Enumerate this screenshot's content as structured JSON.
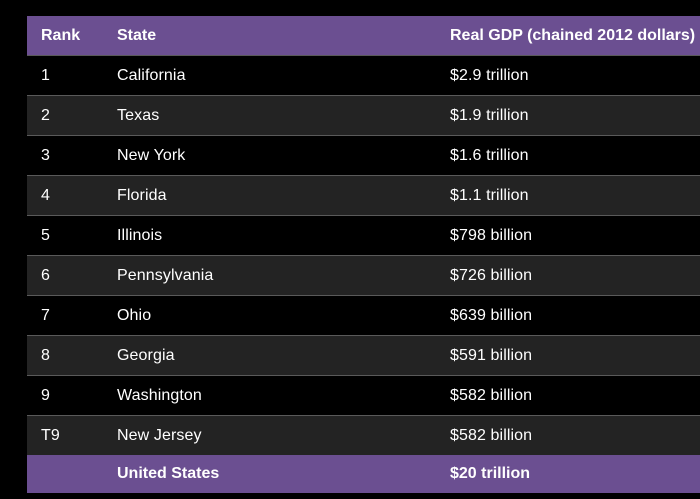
{
  "table": {
    "headers": {
      "rank": "Rank",
      "state": "State",
      "gdp": "Real GDP (chained 2012 dollars)"
    },
    "rows": [
      {
        "rank": "1",
        "state": "California",
        "gdp": "$2.9 trillion"
      },
      {
        "rank": "2",
        "state": "Texas",
        "gdp": "$1.9 trillion"
      },
      {
        "rank": "3",
        "state": "New York",
        "gdp": "$1.6 trillion"
      },
      {
        "rank": "4",
        "state": "Florida",
        "gdp": "$1.1 trillion"
      },
      {
        "rank": "5",
        "state": "Illinois",
        "gdp": "$798 billion"
      },
      {
        "rank": "6",
        "state": "Pennsylvania",
        "gdp": "$726 billion"
      },
      {
        "rank": "7",
        "state": "Ohio",
        "gdp": "$639 billion"
      },
      {
        "rank": "8",
        "state": "Georgia",
        "gdp": "$591 billion"
      },
      {
        "rank": "9",
        "state": "Washington",
        "gdp": "$582 billion"
      },
      {
        "rank": "T9",
        "state": "New Jersey",
        "gdp": "$582 billion"
      }
    ],
    "footer": {
      "rank": "",
      "state": "United States",
      "gdp": "$20 trillion"
    }
  },
  "colors": {
    "header_bg": "#6b4f91",
    "row_dark": "#000000",
    "row_light": "#232323",
    "text": "#ffffff"
  }
}
